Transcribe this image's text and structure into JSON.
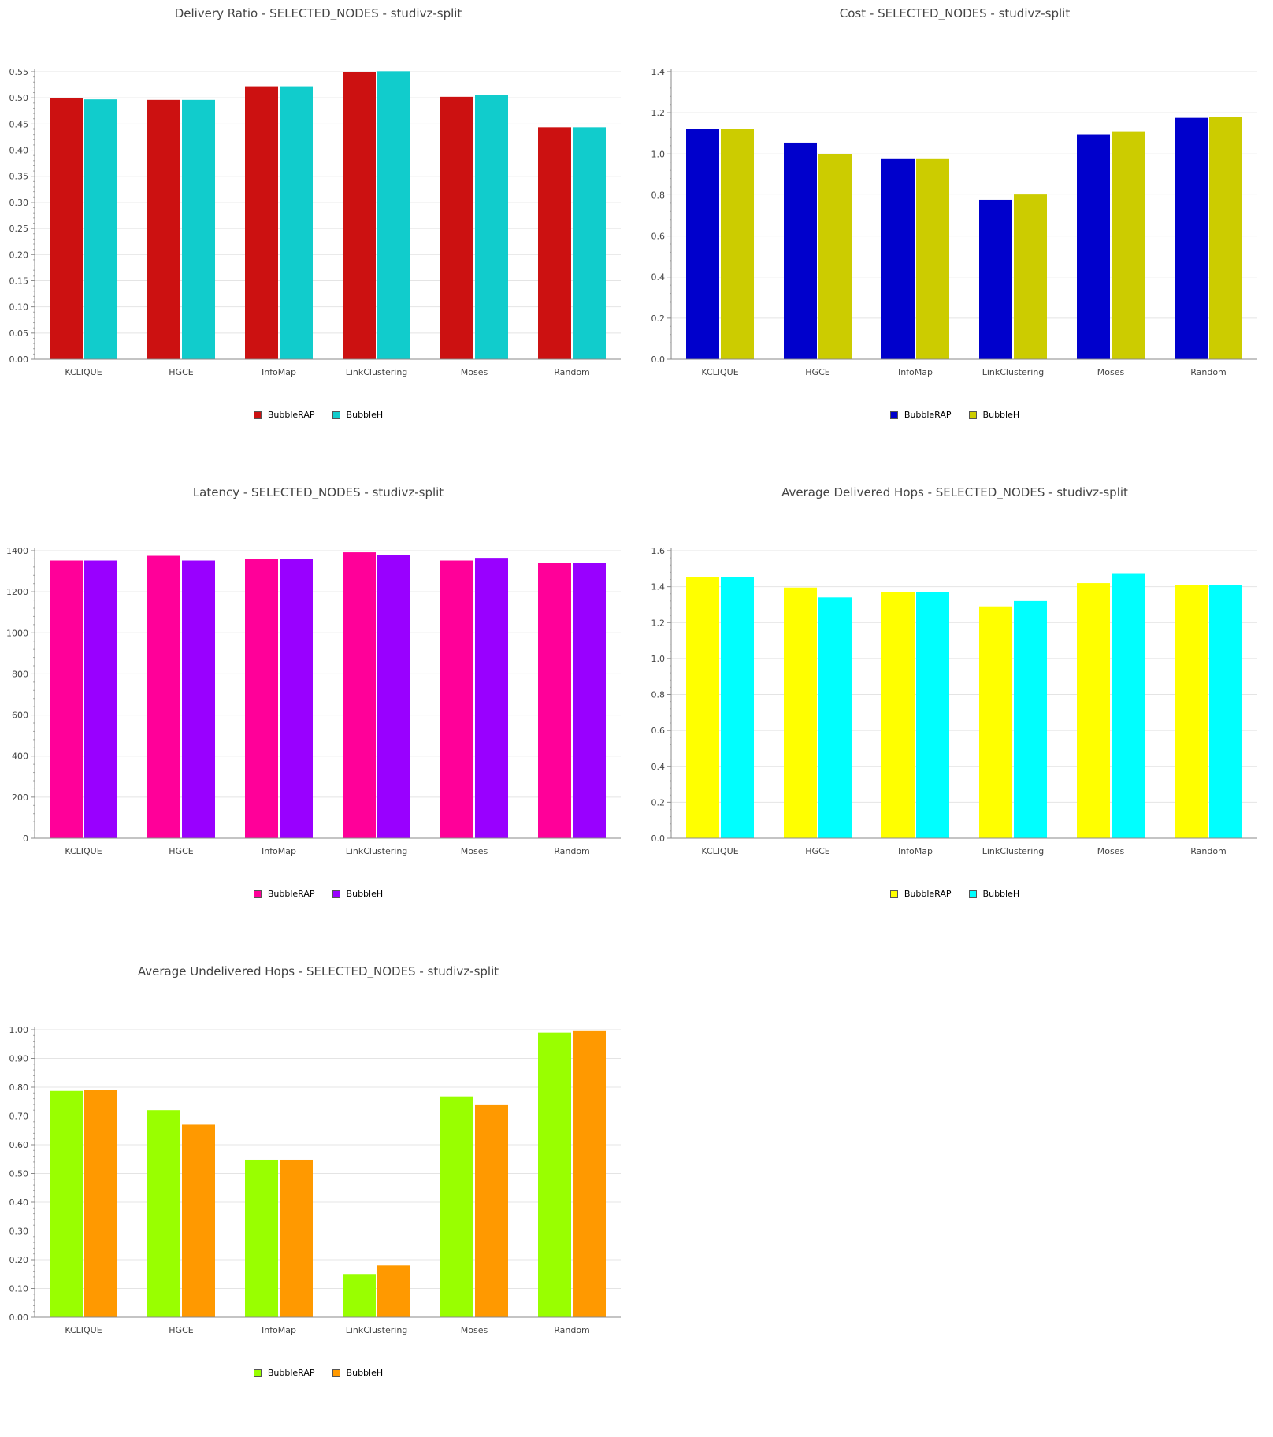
{
  "chart_data": [
    {
      "type": "bar",
      "title": "Delivery Ratio - SELECTED_NODES - studivz-split",
      "categories": [
        "KCLIQUE",
        "HGCE",
        "InfoMap",
        "LinkClustering",
        "Moses",
        "Random"
      ],
      "series": [
        {
          "name": "BubbleRAP",
          "color": "#cc1111",
          "values": [
            0.499,
            0.496,
            0.522,
            0.549,
            0.502,
            0.444
          ]
        },
        {
          "name": "BubbleH",
          "color": "#11cccc",
          "values": [
            0.497,
            0.496,
            0.522,
            0.551,
            0.505,
            0.444
          ]
        }
      ],
      "ylim": [
        0,
        0.55
      ],
      "yticks": [
        "0.00",
        "0.05",
        "0.10",
        "0.15",
        "0.20",
        "0.25",
        "0.30",
        "0.35",
        "0.40",
        "0.45",
        "0.50",
        "0.55"
      ],
      "grid": true,
      "legend": "bottom-center"
    },
    {
      "type": "bar",
      "title": "Cost - SELECTED_NODES - studivz-split",
      "categories": [
        "KCLIQUE",
        "HGCE",
        "InfoMap",
        "LinkClustering",
        "Moses",
        "Random"
      ],
      "series": [
        {
          "name": "BubbleRAP",
          "color": "#0000cc",
          "values": [
            1.12,
            1.055,
            0.975,
            0.775,
            1.095,
            1.175
          ]
        },
        {
          "name": "BubbleH",
          "color": "#cccc00",
          "values": [
            1.12,
            1.0,
            0.975,
            0.805,
            1.11,
            1.178
          ]
        }
      ],
      "ylim": [
        0,
        1.4
      ],
      "yticks": [
        "0.0",
        "0.2",
        "0.4",
        "0.6",
        "0.8",
        "1.0",
        "1.2",
        "1.4"
      ],
      "grid": true,
      "legend": "bottom-center"
    },
    {
      "type": "bar",
      "title": "Latency - SELECTED_NODES - studivz-split",
      "categories": [
        "KCLIQUE",
        "HGCE",
        "InfoMap",
        "LinkClustering",
        "Moses",
        "Random"
      ],
      "series": [
        {
          "name": "BubbleRAP",
          "color": "#ff0099",
          "values": [
            1352,
            1375,
            1360,
            1392,
            1352,
            1340
          ]
        },
        {
          "name": "BubbleH",
          "color": "#9900ff",
          "values": [
            1352,
            1352,
            1360,
            1380,
            1365,
            1340
          ]
        }
      ],
      "ylim": [
        0,
        1400
      ],
      "yticks": [
        "0",
        "200",
        "400",
        "600",
        "800",
        "1000",
        "1200",
        "1400"
      ],
      "grid": true,
      "legend": "bottom-center"
    },
    {
      "type": "bar",
      "title": "Average Delivered Hops - SELECTED_NODES - studivz-split",
      "categories": [
        "KCLIQUE",
        "HGCE",
        "InfoMap",
        "LinkClustering",
        "Moses",
        "Random"
      ],
      "series": [
        {
          "name": "BubbleRAP",
          "color": "#ffff00",
          "values": [
            1.455,
            1.395,
            1.37,
            1.29,
            1.42,
            1.41
          ]
        },
        {
          "name": "BubbleH",
          "color": "#00ffff",
          "values": [
            1.455,
            1.34,
            1.37,
            1.32,
            1.475,
            1.41
          ]
        }
      ],
      "ylim": [
        0,
        1.6
      ],
      "yticks": [
        "0.0",
        "0.2",
        "0.4",
        "0.6",
        "0.8",
        "1.0",
        "1.2",
        "1.4",
        "1.6"
      ],
      "grid": true,
      "legend": "bottom-center"
    },
    {
      "type": "bar",
      "title": "Average Undelivered Hops - SELECTED_NODES - studivz-split",
      "categories": [
        "KCLIQUE",
        "HGCE",
        "InfoMap",
        "LinkClustering",
        "Moses",
        "Random"
      ],
      "series": [
        {
          "name": "BubbleRAP",
          "color": "#99ff00",
          "values": [
            0.787,
            0.72,
            0.548,
            0.15,
            0.768,
            0.99
          ]
        },
        {
          "name": "BubbleH",
          "color": "#ff9900",
          "values": [
            0.79,
            0.67,
            0.548,
            0.18,
            0.74,
            0.995
          ]
        }
      ],
      "ylim": [
        0,
        1.0
      ],
      "yticks": [
        "0.00",
        "0.10",
        "0.20",
        "0.30",
        "0.40",
        "0.50",
        "0.60",
        "0.70",
        "0.80",
        "0.90",
        "1.00"
      ],
      "grid": true,
      "legend": "bottom-center"
    }
  ]
}
